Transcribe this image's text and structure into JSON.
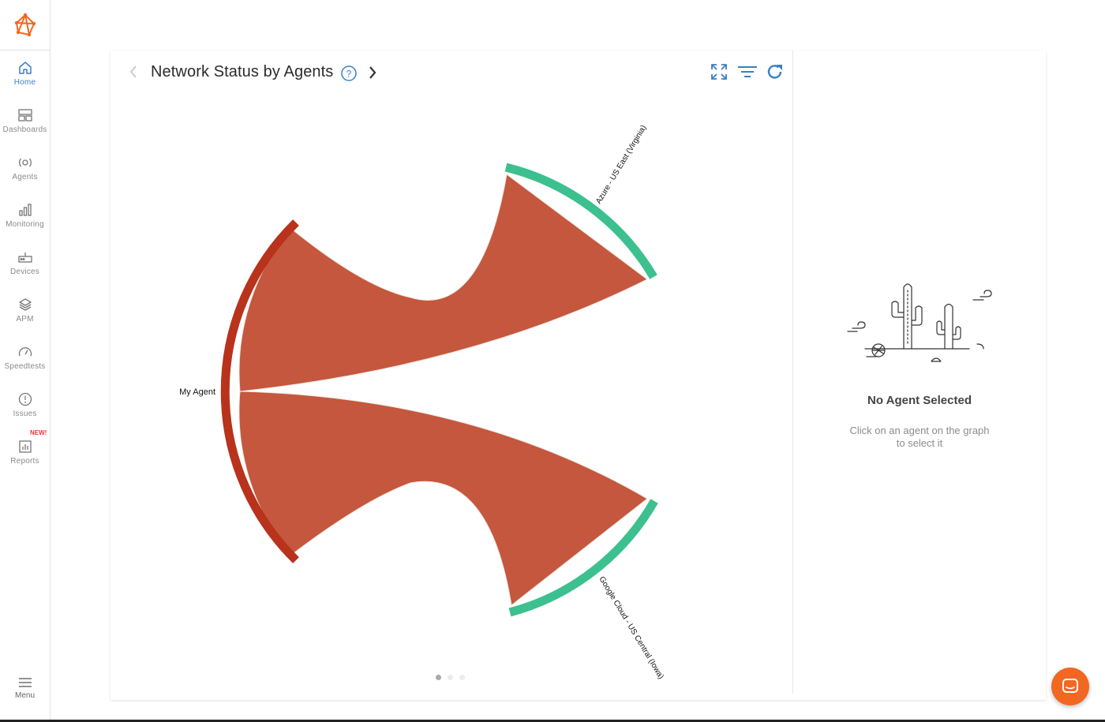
{
  "sidebar": {
    "items": [
      {
        "label": "Home",
        "icon": "home-icon",
        "active": true
      },
      {
        "label": "Dashboards",
        "icon": "dashboard-icon"
      },
      {
        "label": "Agents",
        "icon": "agents-icon"
      },
      {
        "label": "Monitoring",
        "icon": "bar-chart-icon"
      },
      {
        "label": "Devices",
        "icon": "router-icon"
      },
      {
        "label": "APM",
        "icon": "layers-icon"
      },
      {
        "label": "Speedtests",
        "icon": "gauge-icon"
      },
      {
        "label": "Issues",
        "icon": "alert-circle-icon"
      },
      {
        "label": "Reports",
        "icon": "report-icon",
        "badge": "NEW!"
      }
    ],
    "menu_label": "Menu"
  },
  "widget": {
    "title": "Network Status by Agents",
    "pager": {
      "count": 3,
      "active": 0
    }
  },
  "chart_data": {
    "type": "chord",
    "nodes": [
      {
        "name": "My Agent",
        "color": "#b8321c"
      },
      {
        "name": "Azure - US East (Virginia)",
        "color": "#3cc08f"
      },
      {
        "name": "Google Cloud - US Central (Iowa)",
        "color": "#3cc08f"
      }
    ],
    "links": [
      {
        "source": "My Agent",
        "target": "Azure - US East (Virginia)",
        "color": "#c4573d"
      },
      {
        "source": "My Agent",
        "target": "Google Cloud - US Central (Iowa)",
        "color": "#c4573d"
      }
    ]
  },
  "empty_state": {
    "title": "No Agent Selected",
    "subtitle": "Click on an agent on the graph to select it"
  },
  "colors": {
    "accent": "#3b7fc4",
    "brand": "#f26722",
    "chord": "#c4573d",
    "source_arc": "#b8321c",
    "target_arc": "#3cc08f"
  }
}
